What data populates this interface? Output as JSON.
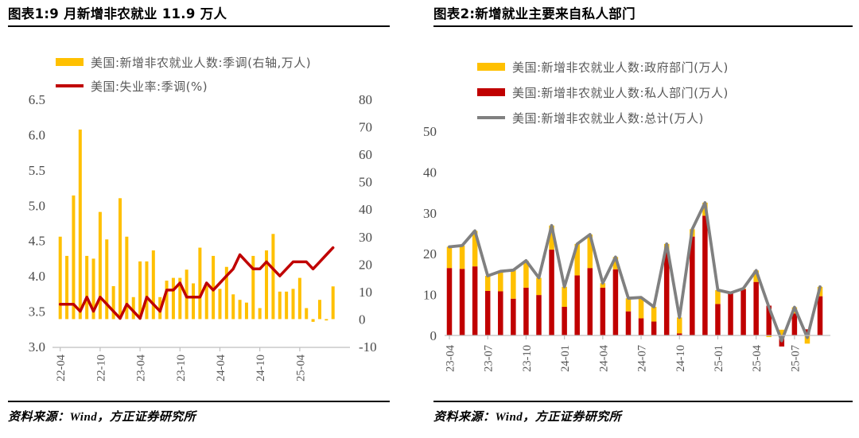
{
  "figure1": {
    "title": "图表1:9 月新增非农就业 11.9 万人",
    "legend": [
      {
        "label": "美国:新增非农就业人数:季调(右轴,万人)",
        "color": "#FFC000",
        "type": "bar"
      },
      {
        "label": "美国:失业率:季调(%)",
        "color": "#C00000",
        "type": "line"
      }
    ],
    "source": "资料来源：Wind，方正证券研究所"
  },
  "figure2": {
    "title": "图表2:新增就业主要来自私人部门",
    "legend": [
      {
        "label": "美国:新增非农就业人数:政府部门(万人)",
        "color": "#FFC000",
        "type": "bar"
      },
      {
        "label": "美国:新增非农就业人数:私人部门(万人)",
        "color": "#C00000",
        "type": "bar"
      },
      {
        "label": "美国:新增非农就业人数:总计(万人)",
        "color": "#808080",
        "type": "line"
      }
    ],
    "source": "资料来源：Wind，方正证券研究所"
  },
  "colors": {
    "bar_yellow": "#FFC000",
    "line_red": "#C00000",
    "line_gray": "#808080",
    "axis_line": "#BFBFBF",
    "axis_text": "#4a4a4a",
    "tick_text": "#595959"
  },
  "chart_data": [
    {
      "type": "bar",
      "subtype": "bar-line-combo",
      "title": "图表1:9 月新增非农就业 11.9 万人",
      "months": [
        "22-04",
        "22-05",
        "22-06",
        "22-07",
        "22-08",
        "22-09",
        "22-10",
        "22-11",
        "22-12",
        "23-01",
        "23-02",
        "23-03",
        "23-04",
        "23-05",
        "23-06",
        "23-07",
        "23-08",
        "23-09",
        "23-10",
        "23-11",
        "23-12",
        "24-01",
        "24-02",
        "24-03",
        "24-04",
        "24-05",
        "24-06",
        "24-07",
        "24-08",
        "24-09",
        "24-10",
        "24-11",
        "24-12",
        "25-01",
        "25-02",
        "25-03",
        "25-04",
        "25-05",
        "25-06",
        "25-07",
        "25-08",
        "25-09"
      ],
      "bar_series": {
        "name": "美国:新增非农就业人数:季调(右轴,万人)",
        "axis": "right",
        "values": [
          30,
          23,
          45,
          69,
          23,
          22,
          39,
          29,
          12,
          44,
          30,
          8,
          21,
          21,
          25,
          8,
          14,
          15,
          15,
          18,
          13,
          26,
          12,
          23,
          11,
          19,
          9,
          7,
          6,
          23,
          4,
          25,
          31,
          10,
          10,
          11,
          15,
          4,
          -1,
          7,
          -0.5,
          11.9
        ]
      },
      "line_series": {
        "name": "美国:失业率:季调(%)",
        "axis": "left",
        "values": [
          3.6,
          3.6,
          3.6,
          3.5,
          3.7,
          3.5,
          3.7,
          3.6,
          3.5,
          3.4,
          3.6,
          3.5,
          3.4,
          3.7,
          3.6,
          3.5,
          3.8,
          3.8,
          3.9,
          3.7,
          3.7,
          3.7,
          3.9,
          3.8,
          3.9,
          4.0,
          4.1,
          4.3,
          4.2,
          4.1,
          4.1,
          4.2,
          4.1,
          4.0,
          4.1,
          4.2,
          4.2,
          4.2,
          4.1,
          4.2,
          4.3,
          4.4
        ]
      },
      "left_ylim": [
        3.0,
        6.5
      ],
      "left_ticks": [
        6.5,
        6.0,
        5.5,
        5.0,
        4.5,
        4.0,
        3.5,
        3.0
      ],
      "right_ylim": [
        -10,
        80
      ],
      "right_ticks": [
        80,
        70,
        60,
        50,
        40,
        30,
        20,
        10,
        0,
        -10
      ],
      "x_tick_labels": [
        "22-04",
        "22-10",
        "23-04",
        "23-10",
        "24-04",
        "24-10",
        "25-04"
      ],
      "x_tick_indices": [
        0,
        6,
        12,
        18,
        24,
        30,
        36
      ],
      "grid": false,
      "legend_position": "top-left"
    },
    {
      "type": "bar",
      "subtype": "stacked-bar-line",
      "title": "图表2:新增就业主要来自私人部门",
      "months": [
        "23-04",
        "23-05",
        "23-06",
        "23-07",
        "23-08",
        "23-09",
        "23-10",
        "23-11",
        "23-12",
        "24-01",
        "24-02",
        "24-03",
        "24-04",
        "24-05",
        "24-06",
        "24-07",
        "24-08",
        "24-09",
        "24-10",
        "24-11",
        "24-12",
        "25-01",
        "25-02",
        "25-03",
        "25-04",
        "25-05",
        "25-06",
        "25-07",
        "25-08",
        "25-09"
      ],
      "series": [
        {
          "name": "美国:新增非农就业人数:私人部门(万人)",
          "role": "stack-bottom",
          "color": "#C00000",
          "values": [
            16.5,
            16.3,
            16.9,
            10.9,
            10.8,
            9.0,
            11.7,
            9.9,
            21.0,
            7.0,
            14.7,
            16.5,
            11.7,
            16.2,
            5.9,
            4.2,
            3.4,
            20.7,
            0.5,
            24.2,
            29.3,
            7.7,
            10.4,
            11.3,
            13.1,
            7.3,
            -2.7,
            5.4,
            1.5,
            9.6
          ]
        },
        {
          "name": "美国:新增非农就业人数:政府部门(万人)",
          "role": "stack-top",
          "color": "#FFC000",
          "values": [
            5.2,
            5.7,
            8.7,
            3.7,
            4.9,
            7.0,
            6.6,
            4.2,
            5.9,
            4.9,
            7.7,
            8.2,
            1.1,
            3.0,
            3.2,
            5.1,
            3.6,
            1.7,
            3.9,
            1.8,
            3.2,
            3.4,
            0.0,
            0.2,
            2.8,
            -0.4,
            1.4,
            1.5,
            -2.0,
            2.3
          ]
        },
        {
          "name": "美国:新增非农就业人数:总计(万人)",
          "role": "line",
          "color": "#808080",
          "values": [
            21.7,
            22.0,
            25.6,
            14.6,
            15.7,
            16.0,
            18.3,
            14.1,
            26.9,
            11.9,
            22.4,
            24.7,
            12.8,
            19.2,
            9.1,
            9.3,
            7.0,
            22.4,
            4.4,
            26.0,
            32.5,
            11.1,
            10.4,
            11.5,
            15.9,
            6.9,
            -1.3,
            6.9,
            -0.5,
            11.9
          ]
        }
      ],
      "ylim": [
        0,
        50
      ],
      "y_ticks": [
        50,
        40,
        30,
        20,
        10,
        0
      ],
      "x_tick_labels": [
        "23-04",
        "23-07",
        "23-10",
        "24-01",
        "24-04",
        "24-07",
        "24-10",
        "25-01",
        "25-04",
        "25-07"
      ],
      "x_tick_indices": [
        0,
        3,
        6,
        9,
        12,
        15,
        18,
        21,
        24,
        27
      ],
      "grid": false,
      "legend_position": "top-center"
    }
  ]
}
